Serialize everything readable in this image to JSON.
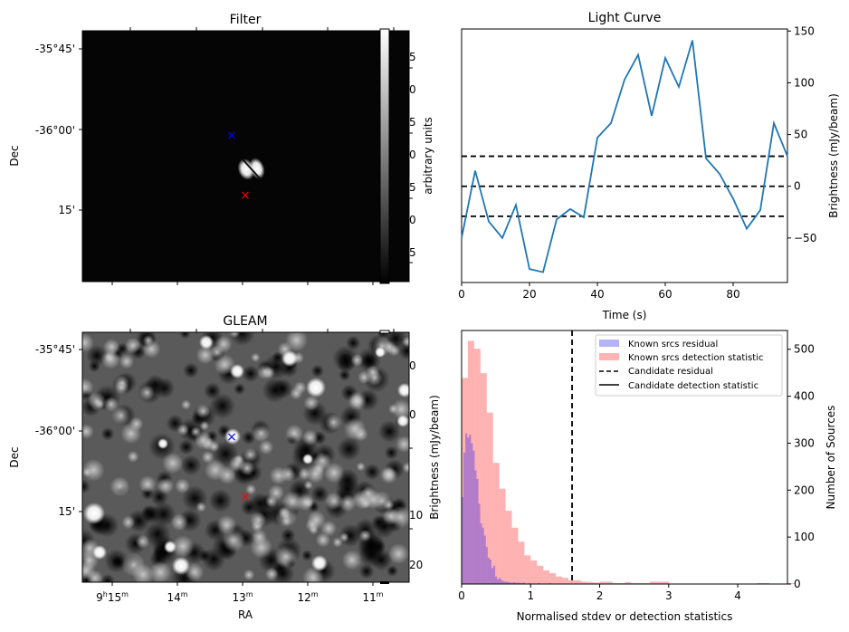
{
  "panels": {
    "filter": {
      "title": "Filter",
      "ylabel": "Dec",
      "dec_ticks": [
        "-35°45'",
        "-36°00'",
        "15'"
      ],
      "colorbar_label": "arbitrary units",
      "colorbar_ticks_visible": [
        "5",
        "0",
        "5",
        "0",
        "5",
        "0",
        "5"
      ],
      "markers": [
        {
          "name": "blue-cross",
          "color": "#0000ff",
          "symbol": "×"
        },
        {
          "name": "red-cross",
          "color": "#ff0000",
          "symbol": "×"
        }
      ],
      "colormap": "gray"
    },
    "gleam": {
      "title": "GLEAM",
      "ylabel": "Dec",
      "xlabel": "RA",
      "dec_ticks": [
        "-35°45'",
        "-36°00'",
        "15'"
      ],
      "ra_ticks": [
        {
          "main": "9",
          "h": "h",
          "min": "15",
          "m": "m"
        },
        {
          "main": "",
          "h": "",
          "min": "14",
          "m": "m"
        },
        {
          "main": "",
          "h": "",
          "min": "13",
          "m": "m"
        },
        {
          "main": "",
          "h": "",
          "min": "12",
          "m": "m"
        },
        {
          "main": "",
          "h": "",
          "min": "11",
          "m": "m"
        }
      ],
      "colorbar_label": "Brightness (mJy/beam)",
      "colorbar_ticks_visible": [
        "0",
        "0",
        "10",
        "20"
      ],
      "markers": [
        {
          "name": "blue-cross",
          "color": "#0000ff",
          "symbol": "×"
        },
        {
          "name": "red-cross",
          "color": "#ff0000",
          "symbol": "×"
        }
      ],
      "colormap": "gray"
    }
  },
  "chart_data": [
    {
      "type": "line",
      "title": "Light Curve",
      "xlabel": "Time (s)",
      "ylabel": "Brightness (mJy/beam)",
      "ylabel_side": "right",
      "xlim": [
        0,
        96
      ],
      "ylim": [
        -93,
        152
      ],
      "xticks": [
        0,
        20,
        40,
        60,
        80
      ],
      "yticks": [
        -50,
        0,
        50,
        100,
        150
      ],
      "ytick_labels": [
        "−50",
        "0",
        "50",
        "100",
        "150"
      ],
      "grid": false,
      "series": [
        {
          "name": "light curve",
          "color": "#1f77b4",
          "x": [
            0,
            4,
            8,
            12,
            16,
            20,
            24,
            28,
            32,
            36,
            40,
            44,
            48,
            52,
            56,
            60,
            64,
            68,
            72,
            76,
            80,
            84,
            88,
            92,
            96
          ],
          "y": [
            -50,
            15,
            -34,
            -50,
            -18,
            -80,
            -83,
            -32,
            -22,
            -30,
            47,
            61,
            103,
            127,
            68,
            124,
            96,
            141,
            27,
            12,
            -12,
            -41,
            -23,
            61,
            29
          ]
        }
      ],
      "hlines": [
        {
          "y": 29,
          "style": "dashed",
          "color": "#000000"
        },
        {
          "y": 0,
          "style": "dashed",
          "color": "#000000"
        },
        {
          "y": -29,
          "style": "dashed",
          "color": "#000000"
        }
      ]
    },
    {
      "type": "bar",
      "subtype": "histogram",
      "xlabel": "Normalised stdev or detection statistics",
      "ylabel_left": "Brightness (mJy/beam)",
      "ylabel": "Number of Sources",
      "ylabel_side": "right",
      "xlim": [
        0,
        4.72
      ],
      "ylim": [
        0,
        540
      ],
      "xticks": [
        0,
        1,
        2,
        3,
        4
      ],
      "yticks": [
        0,
        100,
        200,
        300,
        400,
        500
      ],
      "grid": false,
      "legend_position": "top-right",
      "legend": [
        {
          "label": "Known srcs residual",
          "kind": "patch",
          "color": "#b3b3f7"
        },
        {
          "label": "Known srcs detection statistic",
          "kind": "patch",
          "color": "#ffb3b3"
        },
        {
          "label": "Candidate residual",
          "kind": "dashed-line",
          "color": "#000000"
        },
        {
          "label": "Candidate detection statistic",
          "kind": "solid-line",
          "color": "#000000"
        }
      ],
      "series": [
        {
          "name": "Known srcs detection statistic",
          "color": "#ff0000",
          "alpha": 0.3,
          "bin_start": 0,
          "bin_width": 0.091,
          "values": [
            439,
            518,
            501,
            449,
            365,
            258,
            203,
            156,
            120,
            90,
            61,
            50,
            39,
            29,
            23,
            16,
            13,
            8,
            8,
            5,
            4,
            3,
            5,
            5,
            2,
            2,
            4,
            2,
            2,
            2,
            5,
            5,
            5,
            0,
            0,
            0,
            0,
            0,
            0,
            0,
            0,
            0,
            0,
            0,
            0,
            0,
            0,
            2,
            2,
            0,
            0,
            0,
            2,
            0,
            0,
            0,
            0,
            0,
            0,
            0,
            0,
            0,
            0,
            0,
            0,
            0,
            0,
            0,
            0,
            0,
            0,
            0,
            0,
            0,
            0,
            0,
            0,
            0,
            0,
            0,
            0,
            0,
            0,
            0,
            0,
            0,
            0,
            0,
            0,
            2
          ]
        },
        {
          "name": "Known srcs residual",
          "color": "#0000ff",
          "alpha": 0.3,
          "bin_start": 0,
          "bin_width": 0.027,
          "values": [
            185,
            280,
            321,
            312,
            318,
            300,
            284,
            242,
            224,
            171,
            129,
            120,
            103,
            79,
            56,
            52,
            34,
            39,
            16,
            10,
            13,
            8,
            6,
            5,
            5,
            4,
            3,
            3,
            4,
            2,
            3,
            2,
            2,
            3,
            1,
            1,
            2,
            1,
            1,
            1,
            1,
            2,
            1,
            1,
            1,
            1,
            0,
            2,
            0,
            0,
            1,
            0,
            1
          ]
        }
      ],
      "vlines": [
        {
          "x": 1.6,
          "style": "dashed",
          "color": "#000000",
          "label": "Candidate residual"
        }
      ]
    }
  ]
}
